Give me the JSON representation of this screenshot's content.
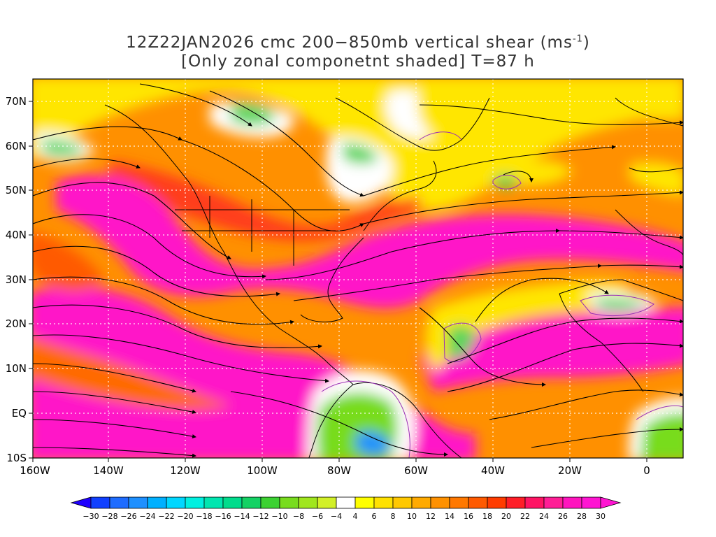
{
  "title": {
    "line1_main": "12Z22JAN2026 cmc 200−850mb vertical shear (ms",
    "line1_sup": "-1",
    "line1_end": ")",
    "line2": "[Only zonal componetnt shaded] T=87 h"
  },
  "map": {
    "lat_labels": [
      "70N",
      "60N",
      "50N",
      "40N",
      "30N",
      "20N",
      "10N",
      "EQ",
      "10S"
    ],
    "lon_labels": [
      "160W",
      "140W",
      "120W",
      "100W",
      "80W",
      "60W",
      "40W",
      "20W",
      "0"
    ]
  },
  "colorbar": {
    "labels": [
      "-30",
      "-28",
      "-26",
      "-24",
      "-22",
      "-20",
      "-18",
      "-16",
      "-14",
      "-12",
      "-10",
      "-8",
      "-6",
      "-4",
      "4",
      "6",
      "8",
      "10",
      "12",
      "14",
      "16",
      "18",
      "20",
      "22",
      "24",
      "26",
      "28",
      "30"
    ],
    "colors": [
      "#1f00ff",
      "#1040ff",
      "#1e6cff",
      "#1e90ff",
      "#00b0ff",
      "#00d7ff",
      "#00f0e0",
      "#00e6b0",
      "#00dc8c",
      "#14d264",
      "#3cd232",
      "#78dc1e",
      "#a0e61e",
      "#d2f028",
      "#ffffff",
      "#ffff00",
      "#ffe100",
      "#ffc800",
      "#ffaa00",
      "#ff9100",
      "#ff7800",
      "#ff5a00",
      "#ff3c00",
      "#ff1e28",
      "#ff1464",
      "#ff1e96",
      "#ff14be",
      "#ff14d2"
    ]
  }
}
